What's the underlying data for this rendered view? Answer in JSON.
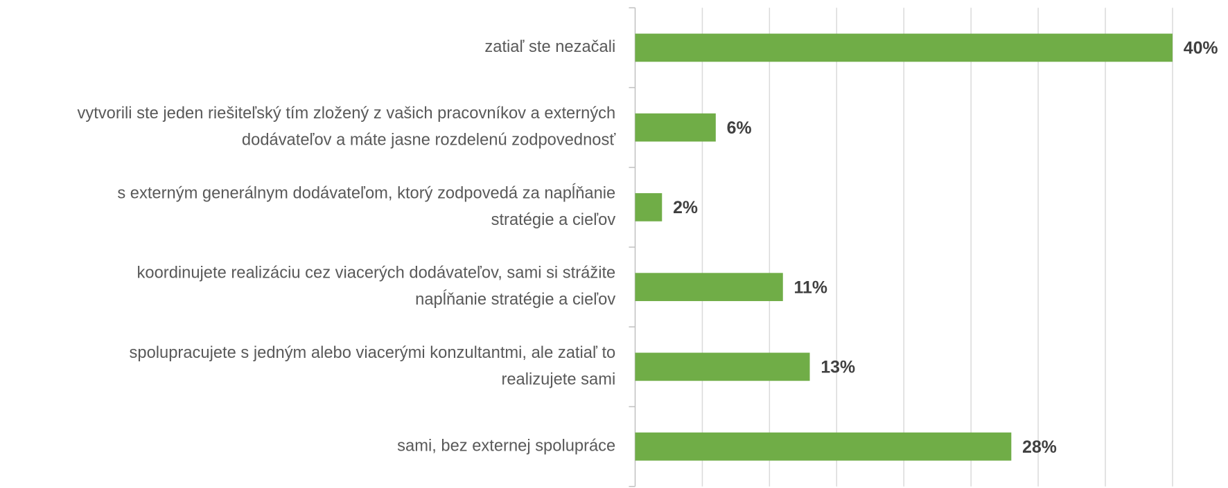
{
  "chart_data": {
    "type": "hbar",
    "categories": [
      [
        "zatiaľ ste nezačali"
      ],
      [
        "vytvorili ste jeden riešiteľský tím zložený z vašich pracovníkov a externých",
        "dodávateľov a máte jasne rozdelenú zodpovednosť"
      ],
      [
        "s externým generálnym dodávateľom, ktorý zodpovedá za napĺňanie",
        "stratégie a cieľov"
      ],
      [
        "koordinujete realizáciu cez viacerých dodávateľov, sami si strážite",
        "napĺňanie stratégie a cieľov"
      ],
      [
        "spolupracujete s jedným alebo viacerými konzultantmi, ale zatiaľ to",
        "realizujete sami"
      ],
      [
        "sami, bez externej spolupráce"
      ]
    ],
    "values": [
      40,
      6,
      2,
      11,
      13,
      28
    ],
    "value_labels": [
      "40%",
      "6%",
      "2%",
      "11%",
      "13%",
      "28%"
    ],
    "color": "#70ad47",
    "xlim": [
      0,
      44
    ],
    "xticks": [
      0,
      5,
      10,
      15,
      20,
      25,
      30,
      35,
      40
    ],
    "grid": true
  }
}
